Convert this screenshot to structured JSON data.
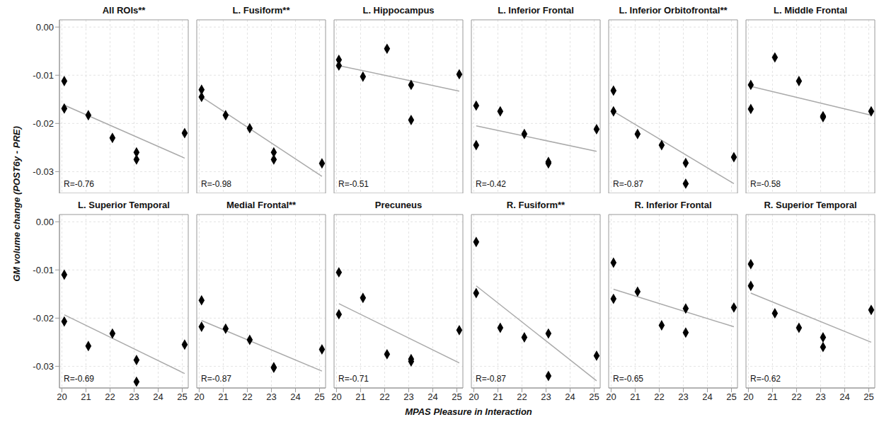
{
  "chart_data": {
    "type": "scatter",
    "xlabel": "MPAS Pleasure in Interaction",
    "ylabel": "GM volume change (POST6y - PRE)",
    "xlim": [
      19.9,
      25.25
    ],
    "ylim": [
      -0.0345,
      0.0015
    ],
    "xticks": [
      20,
      21,
      22,
      23,
      24,
      25
    ],
    "yticks": [
      {
        "value": 0,
        "label": "0.00"
      },
      -0.01,
      -0.02,
      -0.03
    ],
    "grid": true,
    "marker": "diamond",
    "color": "#000000",
    "panels": [
      {
        "title": "All ROIs**",
        "annotation": "R=-0.76",
        "tick_labels": "y",
        "x": [
          20.1,
          20.1,
          21.1,
          22.1,
          23.1,
          23.1,
          25.1
        ],
        "values": [
          -0.0112,
          -0.0169,
          -0.0183,
          -0.023,
          -0.026,
          -0.0275,
          -0.022
        ],
        "fit": {
          "x": [
            20.1,
            25.1
          ],
          "y": [
            -0.0162,
            -0.0272
          ],
          "color": "#aaaaaa"
        }
      },
      {
        "title": "L. Fusiform**",
        "annotation": "R=-0.98",
        "tick_labels": false,
        "x": [
          20.1,
          20.1,
          21.1,
          22.1,
          23.1,
          23.1,
          25.1
        ],
        "values": [
          -0.013,
          -0.0145,
          -0.0183,
          -0.021,
          -0.026,
          -0.0275,
          -0.0283
        ],
        "fit": {
          "x": [
            20.1,
            25.1
          ],
          "y": [
            -0.0145,
            -0.031
          ],
          "color": "#aaaaaa"
        }
      },
      {
        "title": "L. Hippocampus",
        "annotation": "R=-0.51",
        "tick_labels": false,
        "x": [
          20.1,
          20.1,
          21.1,
          22.1,
          23.1,
          23.1,
          25.1
        ],
        "values": [
          -0.0068,
          -0.008,
          -0.0103,
          -0.0045,
          -0.012,
          -0.0193,
          -0.0098
        ],
        "fit": {
          "x": [
            20.1,
            25.1
          ],
          "y": [
            -0.008,
            -0.0133
          ],
          "color": "#aaaaaa"
        }
      },
      {
        "title": "L. Inferior Frontal",
        "annotation": "R=-0.42",
        "tick_labels": false,
        "x": [
          20.1,
          20.1,
          21.1,
          22.1,
          23.1,
          23.1,
          25.1
        ],
        "values": [
          -0.0163,
          -0.0245,
          -0.0175,
          -0.0222,
          -0.028,
          -0.0283,
          -0.0212
        ],
        "fit": {
          "x": [
            20.1,
            25.1
          ],
          "y": [
            -0.0205,
            -0.0258
          ],
          "color": "#aaaaaa"
        }
      },
      {
        "title": "L. Inferior Orbitofrontal**",
        "annotation": "R=-0.87",
        "tick_labels": false,
        "x": [
          20.1,
          20.1,
          21.1,
          22.1,
          23.1,
          23.1,
          25.1
        ],
        "values": [
          -0.0132,
          -0.0175,
          -0.0222,
          -0.0245,
          -0.0282,
          -0.0325,
          -0.027
        ],
        "fit": {
          "x": [
            20.1,
            25.1
          ],
          "y": [
            -0.0175,
            -0.0325
          ],
          "color": "#aaaaaa"
        }
      },
      {
        "title": "L. Middle Frontal",
        "annotation": "R=-0.58",
        "tick_labels": false,
        "x": [
          20.1,
          20.1,
          21.1,
          22.1,
          23.1,
          23.1,
          25.1
        ],
        "values": [
          -0.012,
          -0.017,
          -0.0063,
          -0.0112,
          -0.0185,
          -0.0187,
          -0.0175
        ],
        "fit": {
          "x": [
            20.1,
            25.1
          ],
          "y": [
            -0.0123,
            -0.0183
          ],
          "color": "#aaaaaa"
        }
      },
      {
        "title": "L. Superior Temporal",
        "annotation": "R=-0.69",
        "tick_labels": true,
        "x": [
          20.1,
          20.1,
          21.1,
          22.1,
          23.1,
          23.1,
          25.1
        ],
        "values": [
          -0.011,
          -0.0207,
          -0.0258,
          -0.0232,
          -0.0287,
          -0.0332,
          -0.0255
        ],
        "fit": {
          "x": [
            20.1,
            25.1
          ],
          "y": [
            -0.0193,
            -0.0315
          ],
          "color": "#aaaaaa"
        }
      },
      {
        "title": "Medial Frontal**",
        "annotation": "R=-0.87",
        "tick_labels": "x",
        "x": [
          20.1,
          20.1,
          21.1,
          22.1,
          23.1,
          23.1,
          25.1
        ],
        "values": [
          -0.0163,
          -0.0218,
          -0.0222,
          -0.0245,
          -0.0302,
          -0.0303,
          -0.0265
        ],
        "fit": {
          "x": [
            20.1,
            25.1
          ],
          "y": [
            -0.0205,
            -0.031
          ],
          "color": "#aaaaaa"
        }
      },
      {
        "title": "Precuneus",
        "annotation": "R=-0.71",
        "tick_labels": "x",
        "x": [
          20.1,
          20.1,
          21.1,
          22.1,
          23.1,
          23.1,
          25.1
        ],
        "values": [
          -0.0105,
          -0.0192,
          -0.0158,
          -0.0275,
          -0.0285,
          -0.029,
          -0.0225
        ],
        "fit": {
          "x": [
            20.1,
            25.1
          ],
          "y": [
            -0.017,
            -0.0293
          ],
          "color": "#aaaaaa"
        }
      },
      {
        "title": "R. Fusiform**",
        "annotation": "R=-0.87",
        "tick_labels": "x",
        "x": [
          20.1,
          20.1,
          21.1,
          22.1,
          23.1,
          23.1,
          25.1
        ],
        "values": [
          -0.0042,
          -0.0148,
          -0.022,
          -0.024,
          -0.0232,
          -0.032,
          -0.0278
        ],
        "fit": {
          "x": [
            20.1,
            25.1
          ],
          "y": [
            -0.0133,
            -0.033
          ],
          "color": "#aaaaaa"
        }
      },
      {
        "title": "R. Inferior Frontal",
        "annotation": "R=-0.65",
        "tick_labels": "x",
        "x": [
          20.1,
          20.1,
          21.1,
          22.1,
          23.1,
          23.1,
          25.1
        ],
        "values": [
          -0.0085,
          -0.016,
          -0.0145,
          -0.0215,
          -0.018,
          -0.023,
          -0.0178
        ],
        "fit": {
          "x": [
            20.1,
            25.1
          ],
          "y": [
            -0.014,
            -0.0218
          ],
          "color": "#aaaaaa"
        }
      },
      {
        "title": "R. Superior Temporal",
        "annotation": "R=-0.62",
        "tick_labels": "x",
        "x": [
          20.1,
          20.1,
          21.1,
          22.1,
          23.1,
          23.1,
          25.1
        ],
        "values": [
          -0.0088,
          -0.0133,
          -0.019,
          -0.022,
          -0.024,
          -0.026,
          -0.0183
        ],
        "fit": {
          "x": [
            20.1,
            25.1
          ],
          "y": [
            -0.0148,
            -0.025
          ],
          "color": "#aaaaaa"
        }
      }
    ]
  }
}
